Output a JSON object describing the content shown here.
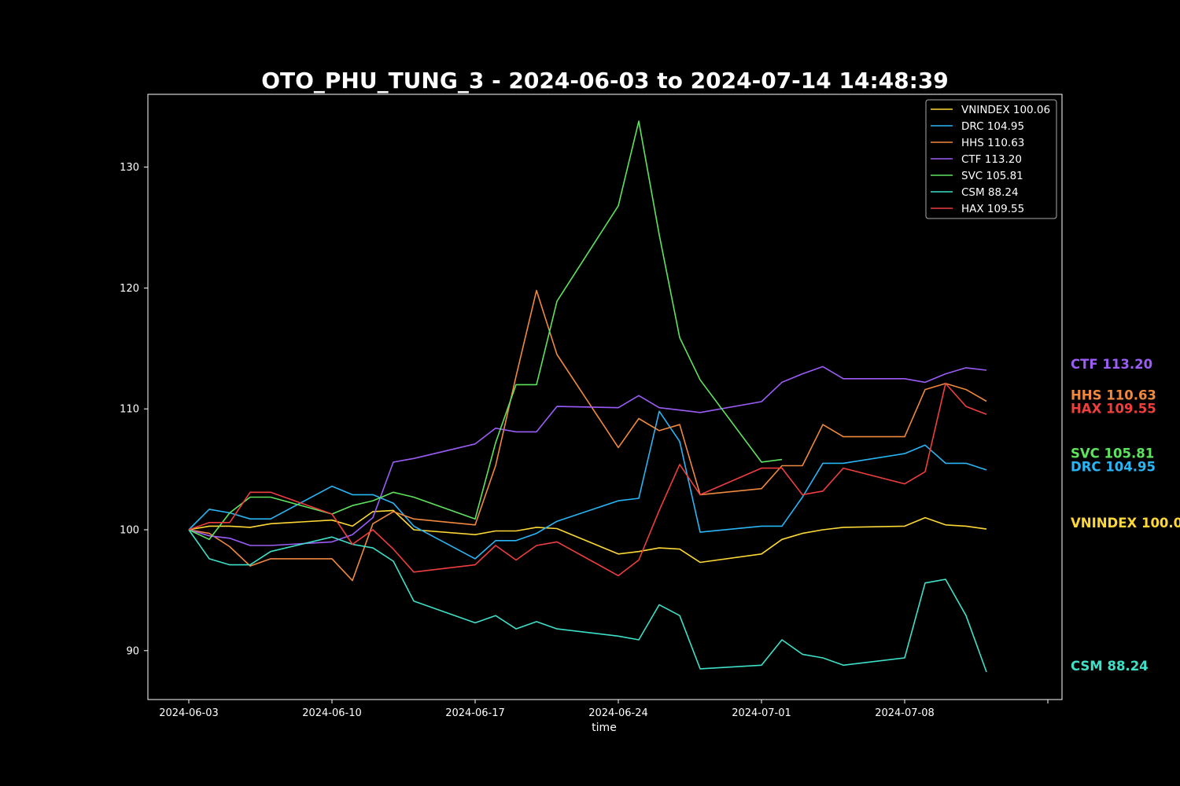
{
  "chart_data": {
    "type": "line",
    "title": "OTO_PHU_TUNG_3 - 2024-06-03 to 2024-07-14 14:48:39",
    "xlabel": "time",
    "ylabel": "",
    "x_ticks": [
      "2024-06-03",
      "2024-06-10",
      "2024-06-17",
      "2024-06-24",
      "2024-07-01",
      "2024-07-08"
    ],
    "y_ticks": [
      90,
      100,
      110,
      120,
      130
    ],
    "ylim": [
      86,
      136
    ],
    "legend_position": "top-right",
    "grid": false,
    "dates": [
      "2024-06-03",
      "2024-06-04",
      "2024-06-05",
      "2024-06-06",
      "2024-06-07",
      "2024-06-10",
      "2024-06-11",
      "2024-06-12",
      "2024-06-13",
      "2024-06-14",
      "2024-06-17",
      "2024-06-18",
      "2024-06-19",
      "2024-06-20",
      "2024-06-21",
      "2024-06-24",
      "2024-06-25",
      "2024-06-26",
      "2024-06-27",
      "2024-06-28",
      "2024-07-01",
      "2024-07-02",
      "2024-07-03",
      "2024-07-04",
      "2024-07-05",
      "2024-07-08",
      "2024-07-09",
      "2024-07-10",
      "2024-07-11",
      "2024-07-12"
    ],
    "series": [
      {
        "name": "VNINDEX",
        "legend": "VNINDEX 100.06",
        "end_label": "VNINDEX 100.06",
        "color": "#fdd835",
        "values": [
          100,
          100.3,
          100.3,
          100.2,
          100.5,
          100.8,
          100.3,
          101.5,
          101.6,
          100.0,
          99.6,
          99.9,
          99.9,
          100.2,
          100.1,
          98.0,
          98.2,
          98.5,
          98.4,
          97.3,
          98.0,
          99.2,
          99.7,
          100.0,
          100.2,
          100.3,
          101.0,
          100.4,
          100.3,
          100.06
        ]
      },
      {
        "name": "DRC",
        "legend": "DRC 104.95",
        "end_label": "DRC 104.95",
        "color": "#29b6f6",
        "values": [
          100,
          101.7,
          101.4,
          100.9,
          100.9,
          103.6,
          102.9,
          102.9,
          102.2,
          100.3,
          97.6,
          99.1,
          99.1,
          99.7,
          100.7,
          102.4,
          102.6,
          109.8,
          107.3,
          99.8,
          100.3,
          100.3,
          102.7,
          105.5,
          105.5,
          106.3,
          107.0,
          105.5,
          105.5,
          104.95
        ]
      },
      {
        "name": "HHS",
        "legend": "HHS 110.63",
        "end_label": "HHS 110.63",
        "color": "#f0883e",
        "values": [
          100,
          99.7,
          98.6,
          97.0,
          97.6,
          97.6,
          95.8,
          100.5,
          101.5,
          100.9,
          100.4,
          105.3,
          112.7,
          119.8,
          114.5,
          106.8,
          109.2,
          108.2,
          108.7,
          102.9,
          103.4,
          105.3,
          105.3,
          108.7,
          107.7,
          107.7,
          111.6,
          112.1,
          111.6,
          110.63
        ]
      },
      {
        "name": "CTF",
        "legend": "CTF 113.20",
        "end_label": "CTF 113.20",
        "color": "#9c5cf7",
        "values": [
          100,
          99.5,
          99.3,
          98.7,
          98.7,
          99.0,
          99.6,
          101.0,
          105.6,
          105.9,
          107.1,
          108.4,
          108.1,
          108.1,
          110.2,
          110.1,
          111.1,
          110.1,
          109.9,
          109.7,
          110.6,
          112.2,
          112.9,
          113.5,
          112.5,
          112.5,
          112.2,
          112.9,
          113.4,
          113.2
        ]
      },
      {
        "name": "SVC",
        "legend": "SVC 105.81",
        "end_label": "SVC 105.81",
        "color": "#5ee35e",
        "values": [
          100,
          99.2,
          101.4,
          102.7,
          102.7,
          101.3,
          102.0,
          102.4,
          103.1,
          102.7,
          100.9,
          107.2,
          112.0,
          112.0,
          118.9,
          126.8,
          133.8,
          124.4,
          115.9,
          112.4,
          105.6,
          105.81,
          null,
          null,
          null,
          null,
          null,
          null,
          null,
          null
        ]
      },
      {
        "name": "CSM",
        "legend": "CSM 88.24",
        "end_label": "CSM 88.24",
        "color": "#3de0c8",
        "values": [
          100,
          97.6,
          97.1,
          97.1,
          98.2,
          99.4,
          98.8,
          98.5,
          97.4,
          94.1,
          92.3,
          92.9,
          91.8,
          92.4,
          91.8,
          91.2,
          90.9,
          93.8,
          92.9,
          88.5,
          88.8,
          90.9,
          89.7,
          89.4,
          88.8,
          89.4,
          95.6,
          95.9,
          92.9,
          88.24
        ]
      },
      {
        "name": "HAX",
        "legend": "HAX 109.55",
        "end_label": "HAX 109.55",
        "color": "#ef3e3e",
        "values": [
          100,
          100.6,
          100.6,
          103.1,
          103.1,
          101.3,
          98.8,
          100.0,
          98.4,
          96.5,
          97.1,
          98.7,
          97.5,
          98.7,
          99.0,
          96.2,
          97.5,
          101.6,
          105.4,
          102.9,
          105.1,
          105.1,
          102.9,
          103.2,
          105.1,
          103.8,
          104.8,
          112.1,
          110.2,
          109.55
        ]
      }
    ]
  }
}
